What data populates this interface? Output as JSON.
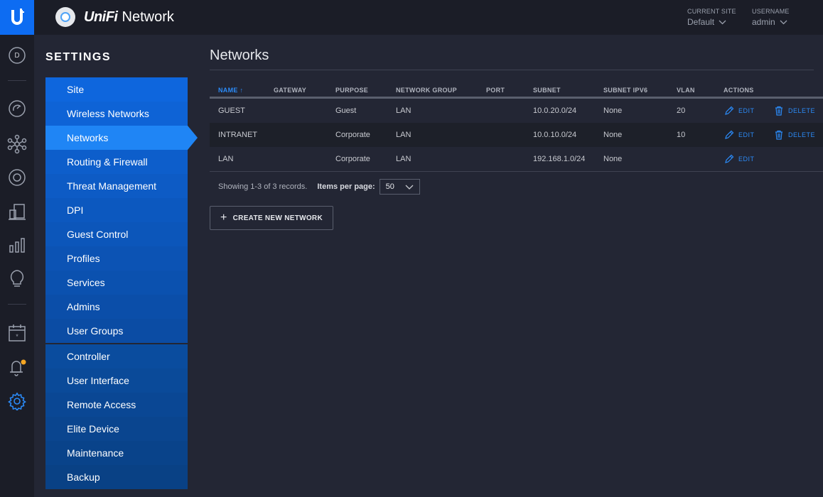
{
  "app": {
    "brand": "UniFi",
    "product": "Network"
  },
  "header": {
    "site_label": "CURRENT SITE",
    "site_value": "Default",
    "user_label": "USERNAME",
    "user_value": "admin"
  },
  "rail": {
    "avatar_letter": "D"
  },
  "settings": {
    "title": "SETTINGS",
    "items": [
      {
        "label": "Site"
      },
      {
        "label": "Wireless Networks"
      },
      {
        "label": "Networks",
        "active": true
      },
      {
        "label": "Routing & Firewall"
      },
      {
        "label": "Threat Management"
      },
      {
        "label": "DPI"
      },
      {
        "label": "Guest Control"
      },
      {
        "label": "Profiles"
      },
      {
        "label": "Services"
      },
      {
        "label": "Admins"
      },
      {
        "label": "User Groups"
      }
    ],
    "items2": [
      {
        "label": "Controller"
      },
      {
        "label": "User Interface"
      },
      {
        "label": "Remote Access"
      },
      {
        "label": "Elite Device"
      },
      {
        "label": "Maintenance"
      },
      {
        "label": "Backup"
      }
    ]
  },
  "page": {
    "title": "Networks"
  },
  "table": {
    "columns": [
      "NAME",
      "GATEWAY",
      "PURPOSE",
      "NETWORK GROUP",
      "PORT",
      "SUBNET",
      "SUBNET IPV6",
      "VLAN",
      "ACTIONS"
    ],
    "rows": [
      {
        "name": "GUEST",
        "gateway": "",
        "purpose": "Guest",
        "group": "LAN",
        "port": "",
        "subnet": "10.0.20.0/24",
        "ipv6": "None",
        "vlan": "20",
        "edit": "EDIT",
        "delete": "DELETE"
      },
      {
        "name": "INTRANET",
        "gateway": "",
        "purpose": "Corporate",
        "group": "LAN",
        "port": "",
        "subnet": "10.0.10.0/24",
        "ipv6": "None",
        "vlan": "10",
        "edit": "EDIT",
        "delete": "DELETE"
      },
      {
        "name": "LAN",
        "gateway": "",
        "purpose": "Corporate",
        "group": "LAN",
        "port": "",
        "subnet": "192.168.1.0/24",
        "ipv6": "None",
        "vlan": "",
        "edit": "EDIT",
        "delete": ""
      }
    ],
    "showing": "Showing 1-3 of 3 records.",
    "items_per_page_label": "Items per page:",
    "items_per_page": "50"
  },
  "create_button": "CREATE NEW NETWORK",
  "colors": {
    "accent": "#1f85f5",
    "link": "#2b8bf8",
    "notification": "#f5a623"
  }
}
